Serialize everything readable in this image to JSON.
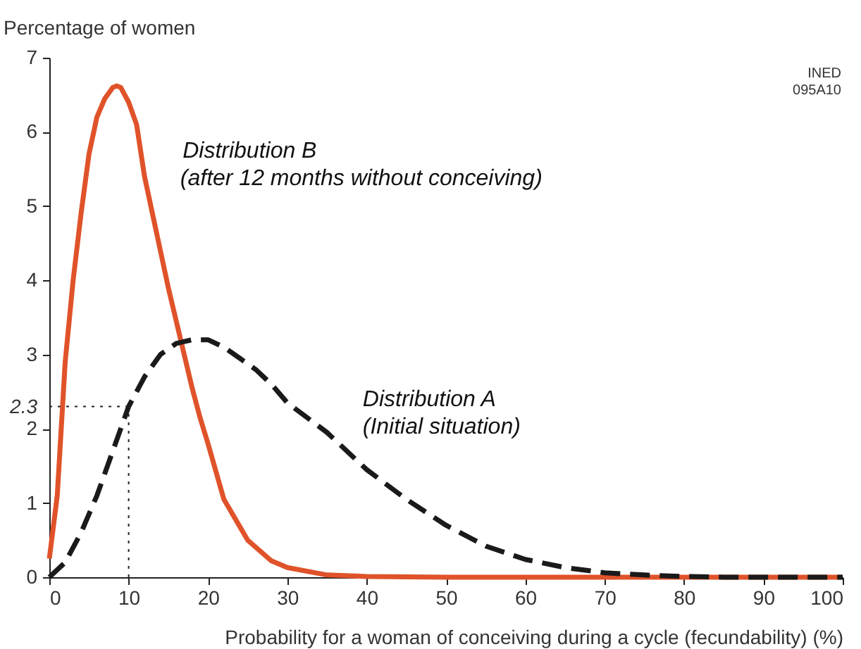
{
  "chart_data": {
    "type": "line",
    "xlabel": "Probability for a woman of conceiving during a cycle (fecundability) (%)",
    "ylabel": "Percentage of women",
    "xlim": [
      0,
      100
    ],
    "xticks": [
      0,
      10,
      20,
      30,
      40,
      50,
      60,
      70,
      80,
      90,
      100
    ],
    "ylim": [
      0,
      7
    ],
    "yticks": [
      0,
      1,
      2,
      2.3,
      3,
      4,
      5,
      6,
      7
    ],
    "ref_lines": [
      {
        "axis": "y",
        "value": 2.3,
        "line_style": "dotted"
      },
      {
        "axis": "x",
        "value": 10,
        "line_style": "dotted"
      }
    ],
    "grid": false,
    "marker": "none",
    "series": [
      {
        "name": "Distribution B",
        "color": "#e0532a",
        "line_style": "solid",
        "x": [
          0,
          1,
          2,
          3,
          4,
          5,
          6,
          7,
          8,
          8.5,
          9,
          10,
          11,
          12,
          13,
          14,
          15,
          16,
          17,
          18,
          19,
          20,
          22,
          25,
          28,
          30,
          35,
          40,
          50,
          60,
          70,
          80,
          90,
          100
        ],
        "values": [
          0.25,
          1.1,
          2.9,
          4.0,
          4.9,
          5.7,
          6.2,
          6.45,
          6.6,
          6.62,
          6.6,
          6.4,
          6.1,
          5.4,
          4.9,
          4.4,
          3.9,
          3.45,
          3.0,
          2.55,
          2.15,
          1.8,
          1.05,
          0.5,
          0.22,
          0.13,
          0.03,
          0.01,
          0,
          0,
          0,
          0,
          0,
          0
        ]
      },
      {
        "name": "Distribution A",
        "color": "#1a1a1a",
        "line_style": "dashed",
        "x": [
          0,
          2,
          4,
          6,
          8,
          10,
          12,
          14,
          16,
          18,
          20,
          22,
          24,
          26,
          28,
          30,
          35,
          40,
          45,
          50,
          55,
          60,
          65,
          70,
          75,
          80,
          85,
          90,
          100
        ],
        "values": [
          0,
          0.2,
          0.6,
          1.1,
          1.7,
          2.3,
          2.7,
          3.0,
          3.15,
          3.2,
          3.2,
          3.1,
          2.95,
          2.8,
          2.6,
          2.35,
          1.95,
          1.45,
          1.05,
          0.7,
          0.42,
          0.24,
          0.13,
          0.06,
          0.03,
          0.01,
          0,
          0,
          0
        ]
      }
    ],
    "annotations": [
      "(after 12 months without conceiving)",
      "(Initial situation)",
      "INED",
      "095A10"
    ]
  }
}
